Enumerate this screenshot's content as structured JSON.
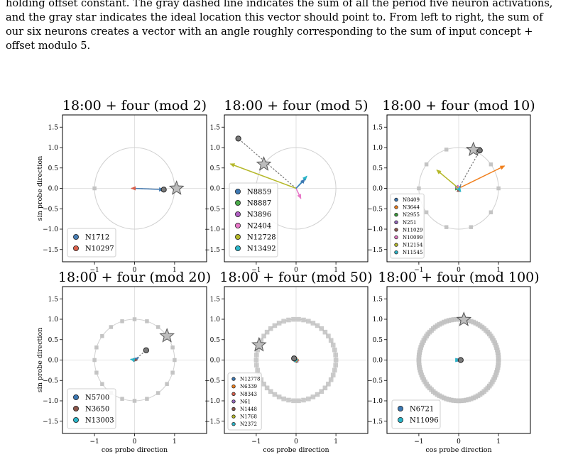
{
  "caption": {
    "lines": [
      "holding offset constant. The gray dashed line indicates the sum of all the period five neuron activations,",
      "and the gray star indicates the ideal location this vector should point to. From left to right, the sum of",
      "our six neurons creates a vector with an angle roughly corresponding to the sum of input concept +",
      "offset modulo 5."
    ]
  },
  "colors": {
    "circle": "#d0d0d0",
    "marker": "#c4c4c4",
    "grid": "#e2e2e2",
    "star_fill": "#bdbdbd",
    "sum_point": "#7a7a7a"
  },
  "chart_data": [
    {
      "type": "scatter",
      "title": "18:00 + four (mod 2)",
      "xlabel": "",
      "ylabel": "sin probe direction",
      "xlim": [
        -1.8,
        1.8
      ],
      "ylim": [
        -1.8,
        1.8
      ],
      "xticks": [
        -1,
        0,
        1
      ],
      "yticks": [
        1.5,
        1.0,
        0.5,
        0.0,
        -0.5,
        -1.0,
        -1.5
      ],
      "xtick_labels": [
        "−1",
        "0",
        "1"
      ],
      "ytick_labels": [
        "1.5",
        "1.0",
        "0.5",
        "0.0",
        "−0.5",
        "−1.0",
        "−1.5"
      ],
      "modulus": 2,
      "markers_visible": true,
      "sum": [
        0.73,
        -0.03
      ],
      "star": [
        1.05,
        0.0
      ],
      "series": [
        {
          "name": "N1712",
          "color": "#4a7fb5",
          "vector": [
            0.72,
            -0.03
          ]
        },
        {
          "name": "N10297",
          "color": "#d9604c",
          "vector": [
            -0.08,
            0.0
          ]
        }
      ],
      "legend": "lower-left",
      "legend_size": "large"
    },
    {
      "type": "scatter",
      "title": "18:00 + four (mod 5)",
      "xlabel": "",
      "ylabel": "",
      "xlim": [
        -1.8,
        1.8
      ],
      "ylim": [
        -1.8,
        1.8
      ],
      "xticks": [
        -1,
        0,
        1
      ],
      "yticks": [
        1.5,
        1.0,
        0.5,
        0.0,
        -0.5,
        -1.0,
        -1.5
      ],
      "xtick_labels": [
        "−1",
        "0",
        "1"
      ],
      "ytick_labels": [
        "1.5",
        "1.0",
        "0.5",
        "0.0",
        "−0.5",
        "−1.0",
        "−1.5"
      ],
      "modulus": 5,
      "markers_visible": false,
      "sum": [
        -1.45,
        1.22
      ],
      "star": [
        -0.81,
        0.59
      ],
      "series": [
        {
          "name": "N8859",
          "color": "#3d78b3",
          "vector": [
            0.0,
            0.0
          ]
        },
        {
          "name": "N8887",
          "color": "#4aaa4a",
          "vector": [
            0.0,
            0.0
          ]
        },
        {
          "name": "N3896",
          "color": "#b160c2",
          "vector": [
            0.0,
            0.0
          ]
        },
        {
          "name": "N2404",
          "color": "#e878c8",
          "vector": [
            0.12,
            -0.25
          ]
        },
        {
          "name": "N12728",
          "color": "#b5b82a",
          "vector": [
            -1.65,
            0.6
          ]
        },
        {
          "name": "N13492",
          "color": "#2bb5c8",
          "vector": [
            0.27,
            0.3
          ]
        }
      ],
      "extra_vectors": [
        {
          "color": "#3d78b3",
          "vector": [
            0.22,
            0.22
          ]
        }
      ],
      "legend": "lower-left",
      "legend_size": "large"
    },
    {
      "type": "scatter",
      "title": "18:00 + four (mod 10)",
      "xlabel": "",
      "ylabel": "",
      "xlim": [
        -1.8,
        1.8
      ],
      "ylim": [
        -1.8,
        1.8
      ],
      "xticks": [
        -1,
        0,
        1
      ],
      "yticks": [
        1.5,
        1.0,
        0.5,
        0.0,
        -0.5,
        -1.0,
        -1.5
      ],
      "xtick_labels": [
        "−1",
        "0",
        "1"
      ],
      "ytick_labels": [
        "1.5",
        "1.0",
        "0.5",
        "0.0",
        "−0.5",
        "−1.0",
        "−1.5"
      ],
      "modulus": 10,
      "markers_visible": true,
      "sum": [
        0.53,
        0.93
      ],
      "star": [
        0.37,
        0.95
      ],
      "series": [
        {
          "name": "N8409",
          "color": "#3d78b3",
          "vector": [
            0.05,
            0.06
          ]
        },
        {
          "name": "N3644",
          "color": "#f07f1c",
          "vector": [
            1.15,
            0.55
          ]
        },
        {
          "name": "N2955",
          "color": "#3a9a3a",
          "vector": [
            0.02,
            0.0
          ]
        },
        {
          "name": "N251",
          "color": "#9467bd",
          "vector": [
            0.02,
            -0.02
          ]
        },
        {
          "name": "N11029",
          "color": "#8c564b",
          "vector": [
            0.0,
            0.02
          ]
        },
        {
          "name": "N10099",
          "color": "#e377c2",
          "vector": [
            0.03,
            -0.03
          ]
        },
        {
          "name": "N12154",
          "color": "#b5b82a",
          "vector": [
            -0.55,
            0.45
          ]
        },
        {
          "name": "N11545",
          "color": "#2bb5c8",
          "vector": [
            0.05,
            -0.08
          ]
        }
      ],
      "legend": "lower-left",
      "legend_size": "small"
    },
    {
      "type": "scatter",
      "title": "18:00 + four (mod 20)",
      "xlabel": "cos probe direction",
      "ylabel": "sin probe direction",
      "xlim": [
        -1.8,
        1.8
      ],
      "ylim": [
        -1.8,
        1.8
      ],
      "xticks": [
        -1,
        0,
        1
      ],
      "yticks": [
        1.5,
        1.0,
        0.5,
        0.0,
        -0.5,
        -1.0,
        -1.5
      ],
      "xtick_labels": [
        "−1",
        "0",
        "1"
      ],
      "ytick_labels": [
        "1.5",
        "1.0",
        "0.5",
        "0.0",
        "−0.5",
        "−1.0",
        "−1.5"
      ],
      "modulus": 20,
      "markers_visible": true,
      "sum": [
        0.29,
        0.24
      ],
      "star": [
        0.81,
        0.59
      ],
      "series": [
        {
          "name": "N5700",
          "color": "#3d78b3",
          "vector": [
            0.1,
            0.06
          ]
        },
        {
          "name": "N3650",
          "color": "#8c564b",
          "vector": [
            0.07,
            0.0
          ]
        },
        {
          "name": "N13003",
          "color": "#2bb5c8",
          "vector": [
            -0.1,
            0.02
          ]
        }
      ],
      "legend": "lower-left",
      "legend_size": "large"
    },
    {
      "type": "scatter",
      "title": "18:00 + four (mod 50)",
      "xlabel": "cos probe direction",
      "ylabel": "",
      "xlim": [
        -1.8,
        1.8
      ],
      "ylim": [
        -1.8,
        1.8
      ],
      "xticks": [
        -1,
        0,
        1
      ],
      "yticks": [
        1.5,
        1.0,
        0.5,
        0.0,
        -0.5,
        -1.0,
        -1.5
      ],
      "xtick_labels": [
        "−1",
        "0",
        "1"
      ],
      "ytick_labels": [
        "1.5",
        "1.0",
        "0.5",
        "0.0",
        "−0.5",
        "−1.0",
        "−1.5"
      ],
      "modulus": 50,
      "markers_visible": true,
      "sum": [
        -0.05,
        0.04
      ],
      "star": [
        -0.93,
        0.37
      ],
      "series": [
        {
          "name": "N12778",
          "color": "#3d78b3",
          "vector": [
            0.05,
            -0.05
          ]
        },
        {
          "name": "N6339",
          "color": "#f07f1c",
          "vector": [
            0.06,
            0.02
          ]
        },
        {
          "name": "N8343",
          "color": "#d9604c",
          "vector": [
            0.07,
            -0.02
          ]
        },
        {
          "name": "N61",
          "color": "#9467bd",
          "vector": [
            0.03,
            -0.06
          ]
        },
        {
          "name": "N1448",
          "color": "#8c564b",
          "vector": [
            0.02,
            0.04
          ]
        },
        {
          "name": "N1768",
          "color": "#b5b82a",
          "vector": [
            0.02,
            -0.04
          ]
        },
        {
          "name": "N2372",
          "color": "#2bb5c8",
          "vector": [
            0.05,
            0.01
          ]
        }
      ],
      "legend": "lower-left",
      "legend_size": "small"
    },
    {
      "type": "scatter",
      "title": "18:00 + four (mod 100)",
      "xlabel": "cos probe direction",
      "ylabel": "",
      "xlim": [
        -1.8,
        1.8
      ],
      "ylim": [
        -1.8,
        1.8
      ],
      "xticks": [
        -1,
        0,
        1
      ],
      "yticks": [
        1.5,
        1.0,
        0.5,
        0.0,
        -0.5,
        -1.0,
        -1.5
      ],
      "xtick_labels": [
        "−1",
        "0",
        "1"
      ],
      "ytick_labels": [
        "1.5",
        "1.0",
        "0.5",
        "0.0",
        "−0.5",
        "−1.0",
        "−1.5"
      ],
      "modulus": 100,
      "markers_visible": true,
      "sum": [
        0.05,
        0.0
      ],
      "star": [
        0.13,
        0.99
      ],
      "series": [
        {
          "name": "N6721",
          "color": "#3d78b3",
          "vector": [
            0.05,
            0.0
          ]
        },
        {
          "name": "N11096",
          "color": "#2bb5c8",
          "vector": [
            0.02,
            0.0
          ]
        }
      ],
      "legend": "lower-left",
      "legend_size": "large"
    }
  ]
}
